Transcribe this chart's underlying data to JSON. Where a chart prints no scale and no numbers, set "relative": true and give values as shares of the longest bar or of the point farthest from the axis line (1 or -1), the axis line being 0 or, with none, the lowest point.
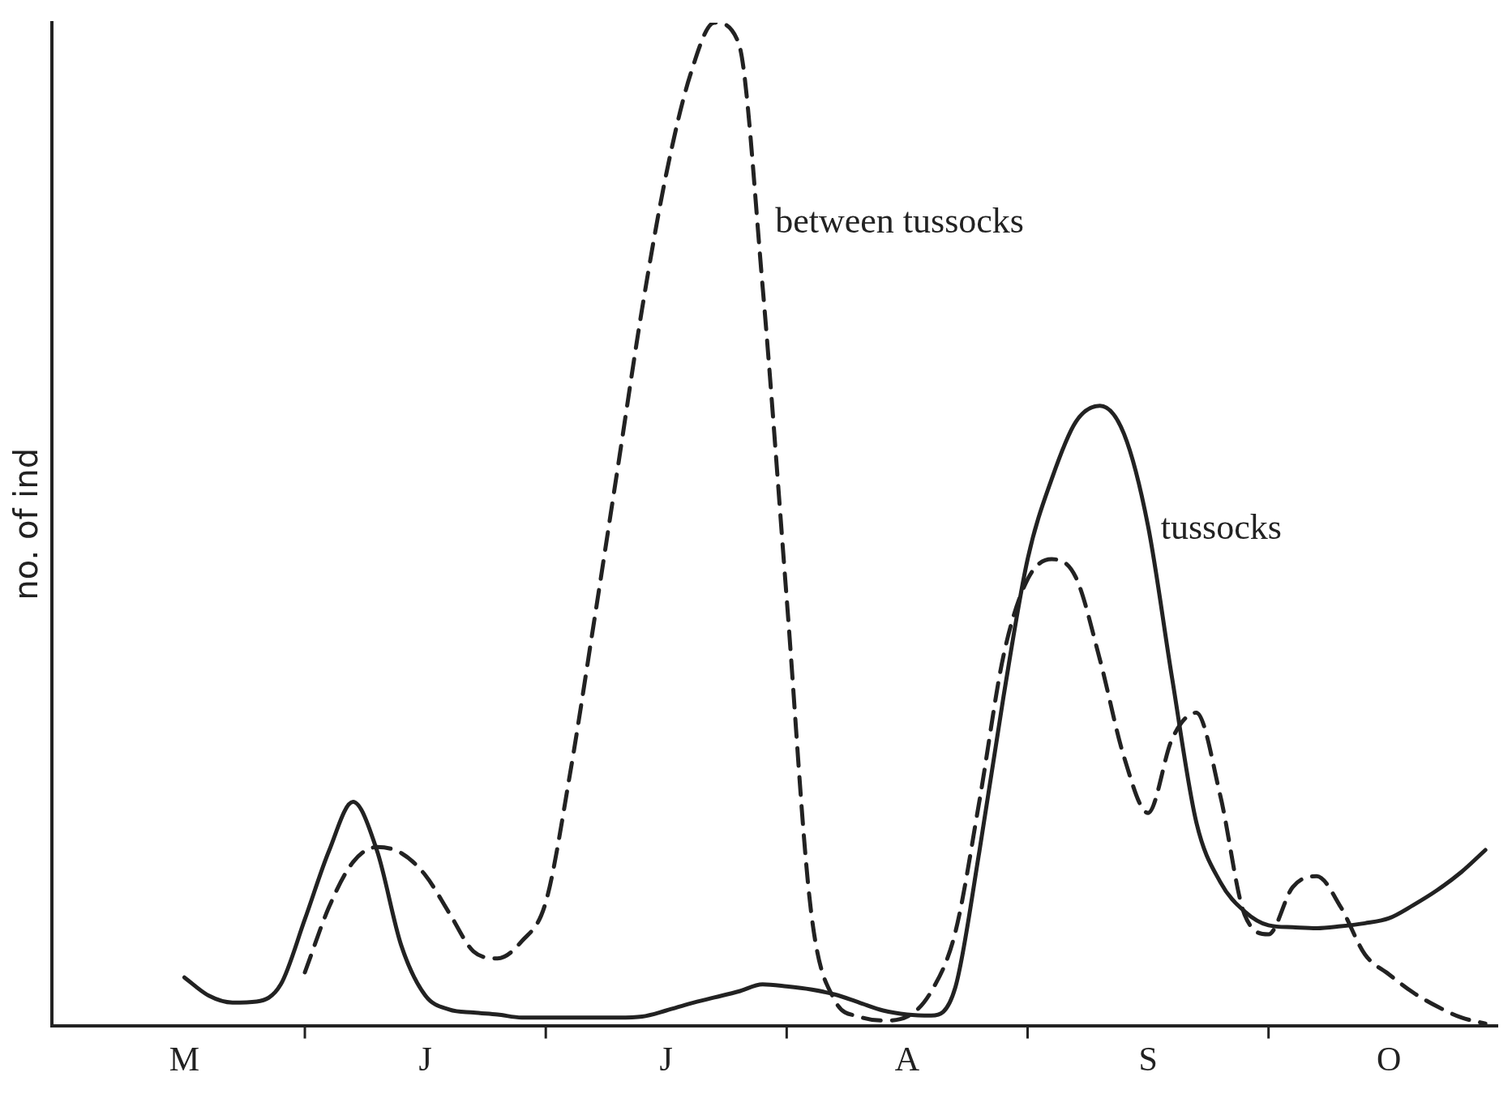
{
  "chart_data": {
    "type": "line",
    "relative": true,
    "ylabel": "no. of ind",
    "grid": false,
    "legend": false,
    "marker": "none",
    "categories": [
      null,
      null,
      null,
      null,
      null,
      "M",
      null,
      null,
      null,
      null,
      null,
      null,
      null,
      null,
      null,
      "J",
      null,
      null,
      null,
      null,
      null,
      null,
      null,
      null,
      null,
      "J",
      null,
      null,
      null,
      null,
      null,
      null,
      null,
      null,
      null,
      "A",
      null,
      null,
      null,
      null,
      null,
      null,
      null,
      null,
      null,
      "S",
      null,
      null,
      null,
      null,
      null,
      null,
      null,
      null,
      null,
      "O",
      null,
      null,
      null,
      null
    ],
    "series": [
      {
        "name": "between tussocks",
        "color": "#222222",
        "line_style": "dashed",
        "values": [
          null,
          null,
          null,
          null,
          null,
          null,
          null,
          null,
          null,
          null,
          0.053,
          0.118,
          0.163,
          0.178,
          0.172,
          0.15,
          0.112,
          0.074,
          0.067,
          0.084,
          0.123,
          0.25,
          0.402,
          0.558,
          0.715,
          0.849,
          0.948,
          1,
          0.98,
          0.737,
          0.426,
          0.116,
          0.025,
          0.009,
          0.005,
          0.009,
          0.034,
          0.093,
          0.224,
          0.369,
          0.445,
          0.465,
          0.447,
          0.365,
          0.268,
          0.212,
          0.286,
          0.312,
          0.229,
          0.111,
          0.091,
          0.138,
          0.149,
          0.118,
          0.071,
          0.051,
          0.033,
          0.019,
          0.008,
          0.002
        ]
      },
      {
        "name": "tussocks",
        "color": "#222222",
        "line_style": "solid",
        "values": [
          null,
          null,
          null,
          null,
          null,
          0.048,
          0.03,
          0.023,
          0.024,
          0.041,
          0.106,
          0.174,
          0.223,
          0.174,
          0.08,
          0.03,
          0.016,
          0.013,
          0.011,
          0.008,
          0.008,
          0.008,
          0.008,
          0.008,
          0.009,
          0.015,
          0.022,
          0.028,
          0.034,
          0.041,
          0.039,
          0.036,
          0.031,
          0.023,
          0.015,
          0.011,
          0.01,
          0.038,
          0.174,
          0.328,
          0.465,
          0.545,
          0.602,
          0.618,
          0.59,
          0.498,
          0.346,
          0.203,
          0.143,
          0.114,
          0.1,
          0.098,
          0.097,
          0.099,
          0.102,
          0.107,
          0.12,
          0.135,
          0.153,
          0.175
        ]
      }
    ]
  }
}
